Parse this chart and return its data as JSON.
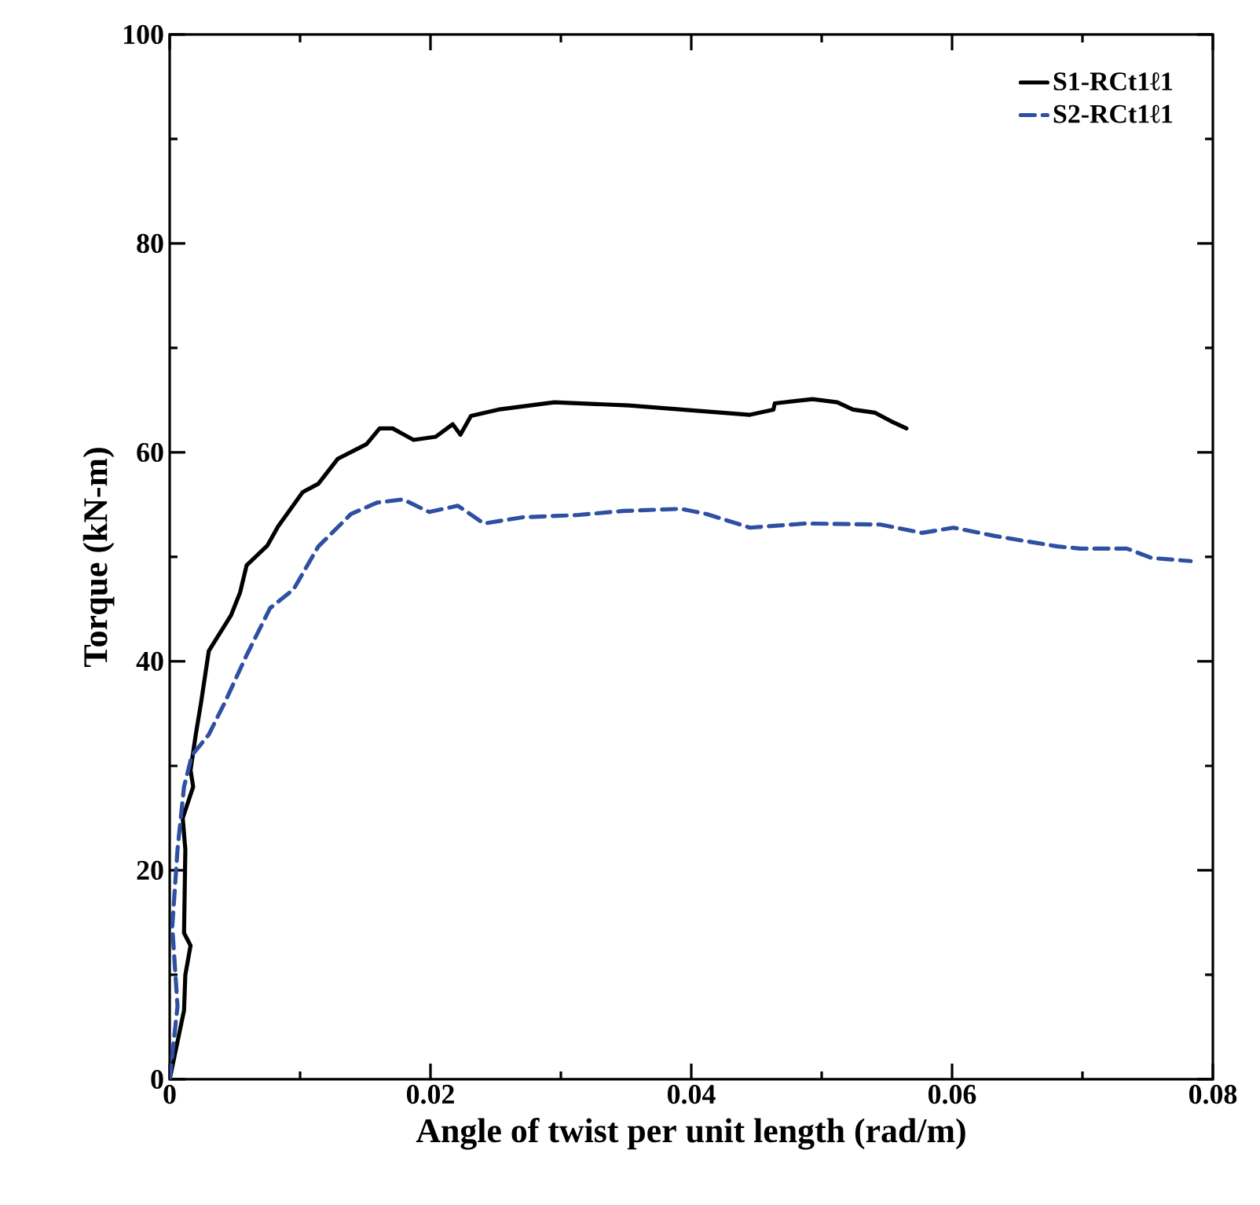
{
  "chart_data": {
    "type": "line",
    "xlabel": "Angle of twist per unit length (rad/m)",
    "ylabel": "Torque (kN-m)",
    "xlim": [
      0,
      0.08
    ],
    "ylim": [
      0,
      100
    ],
    "xticks": [
      0,
      0.02,
      0.04,
      0.06,
      0.08
    ],
    "yticks": [
      0,
      20,
      40,
      60,
      80,
      100
    ],
    "grid": false,
    "legend": "top right",
    "series": [
      {
        "name": "S1-RCt1ℓ1",
        "color": "#000000",
        "line_style": "solid",
        "x": [
          0,
          0.0011,
          0.0012,
          0.0016,
          0.0011,
          0.0012,
          0.001,
          0.0018,
          0.0016,
          0.002,
          0.0024,
          0.003,
          0.0047,
          0.0054,
          0.0059,
          0.0075,
          0.0083,
          0.0102,
          0.0114,
          0.0129,
          0.0151,
          0.0161,
          0.0171,
          0.0187,
          0.0204,
          0.0217,
          0.0223,
          0.0231,
          0.0252,
          0.0295,
          0.0352,
          0.0445,
          0.0463,
          0.0464,
          0.0493,
          0.0512,
          0.0524,
          0.0541,
          0.0553,
          0.0565
        ],
        "values": [
          0,
          6.6,
          10,
          12.8,
          14,
          22,
          25,
          28,
          29.6,
          33,
          36,
          41,
          44.4,
          46.6,
          49.2,
          51.1,
          52.9,
          56.2,
          57,
          59.4,
          60.8,
          62.3,
          62.3,
          61.2,
          61.5,
          62.7,
          61.7,
          63.5,
          64.1,
          64.8,
          64.5,
          63.6,
          64.1,
          64.7,
          65.1,
          64.8,
          64.1,
          63.8,
          63,
          62.3
        ]
      },
      {
        "name": "S2-RCt1ℓ1",
        "color": "#2e4fa3",
        "line_style": "dashed",
        "x": [
          0,
          0.0006,
          0.0002,
          0.0006,
          0.0011,
          0.0017,
          0.003,
          0.0042,
          0.0059,
          0.0077,
          0.0095,
          0.0114,
          0.0139,
          0.0159,
          0.0179,
          0.0199,
          0.0221,
          0.0241,
          0.0271,
          0.0312,
          0.0348,
          0.0392,
          0.0412,
          0.0445,
          0.0488,
          0.0545,
          0.0577,
          0.0601,
          0.0633,
          0.0681,
          0.0698,
          0.0734,
          0.0753,
          0.0783
        ],
        "values": [
          0,
          7,
          14.6,
          22,
          28,
          31,
          33,
          36,
          40.6,
          45.1,
          46.9,
          51,
          54.1,
          55.2,
          55.5,
          54.3,
          54.9,
          53.2,
          53.8,
          54,
          54.4,
          54.6,
          54.1,
          52.8,
          53.2,
          53.1,
          52.3,
          52.8,
          52,
          51,
          50.8,
          50.8,
          49.9,
          49.6
        ]
      }
    ]
  }
}
